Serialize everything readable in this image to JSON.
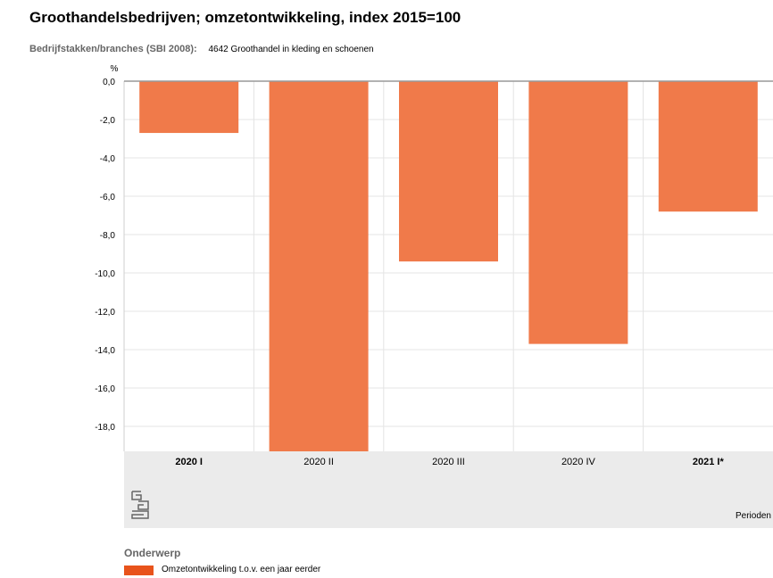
{
  "title": "Groothandelsbedrijven; omzetontwikkeling, index 2015=100",
  "filter": {
    "label": "Bedrijfstakken/branches (SBI 2008):",
    "value": "4642 Groothandel in kleding en schoenen"
  },
  "legend": {
    "title": "Onderwerp",
    "items": [
      {
        "label": "Omzetontwikkeling t.o.v. een jaar eerder",
        "color": "#e8531b"
      }
    ]
  },
  "chart_data": {
    "type": "bar",
    "unit_label": "%",
    "xlabel": "Perioden",
    "ylabel": "",
    "categories": [
      "2020 I",
      "2020 II",
      "2020 III",
      "2020 IV",
      "2021 I*"
    ],
    "bold_categories": [
      "2020 I",
      "2021 I*"
    ],
    "series": [
      {
        "name": "Omzetontwikkeling t.o.v. een jaar eerder",
        "values": [
          -2.7,
          -19.3,
          -9.4,
          -13.7,
          -6.8
        ],
        "color": "#f07a4a"
      }
    ],
    "ylim": [
      -19.3,
      0
    ],
    "yticks": [
      "0,0",
      "-2,0",
      "-4,0",
      "-6,0",
      "-8,0",
      "-10,0",
      "-12,0",
      "-14,0",
      "-16,0",
      "-18,0"
    ],
    "ytick_values": [
      0,
      -2,
      -4,
      -6,
      -8,
      -10,
      -12,
      -14,
      -16,
      -18
    ],
    "grid": true,
    "legend_position": "bottom-left"
  }
}
